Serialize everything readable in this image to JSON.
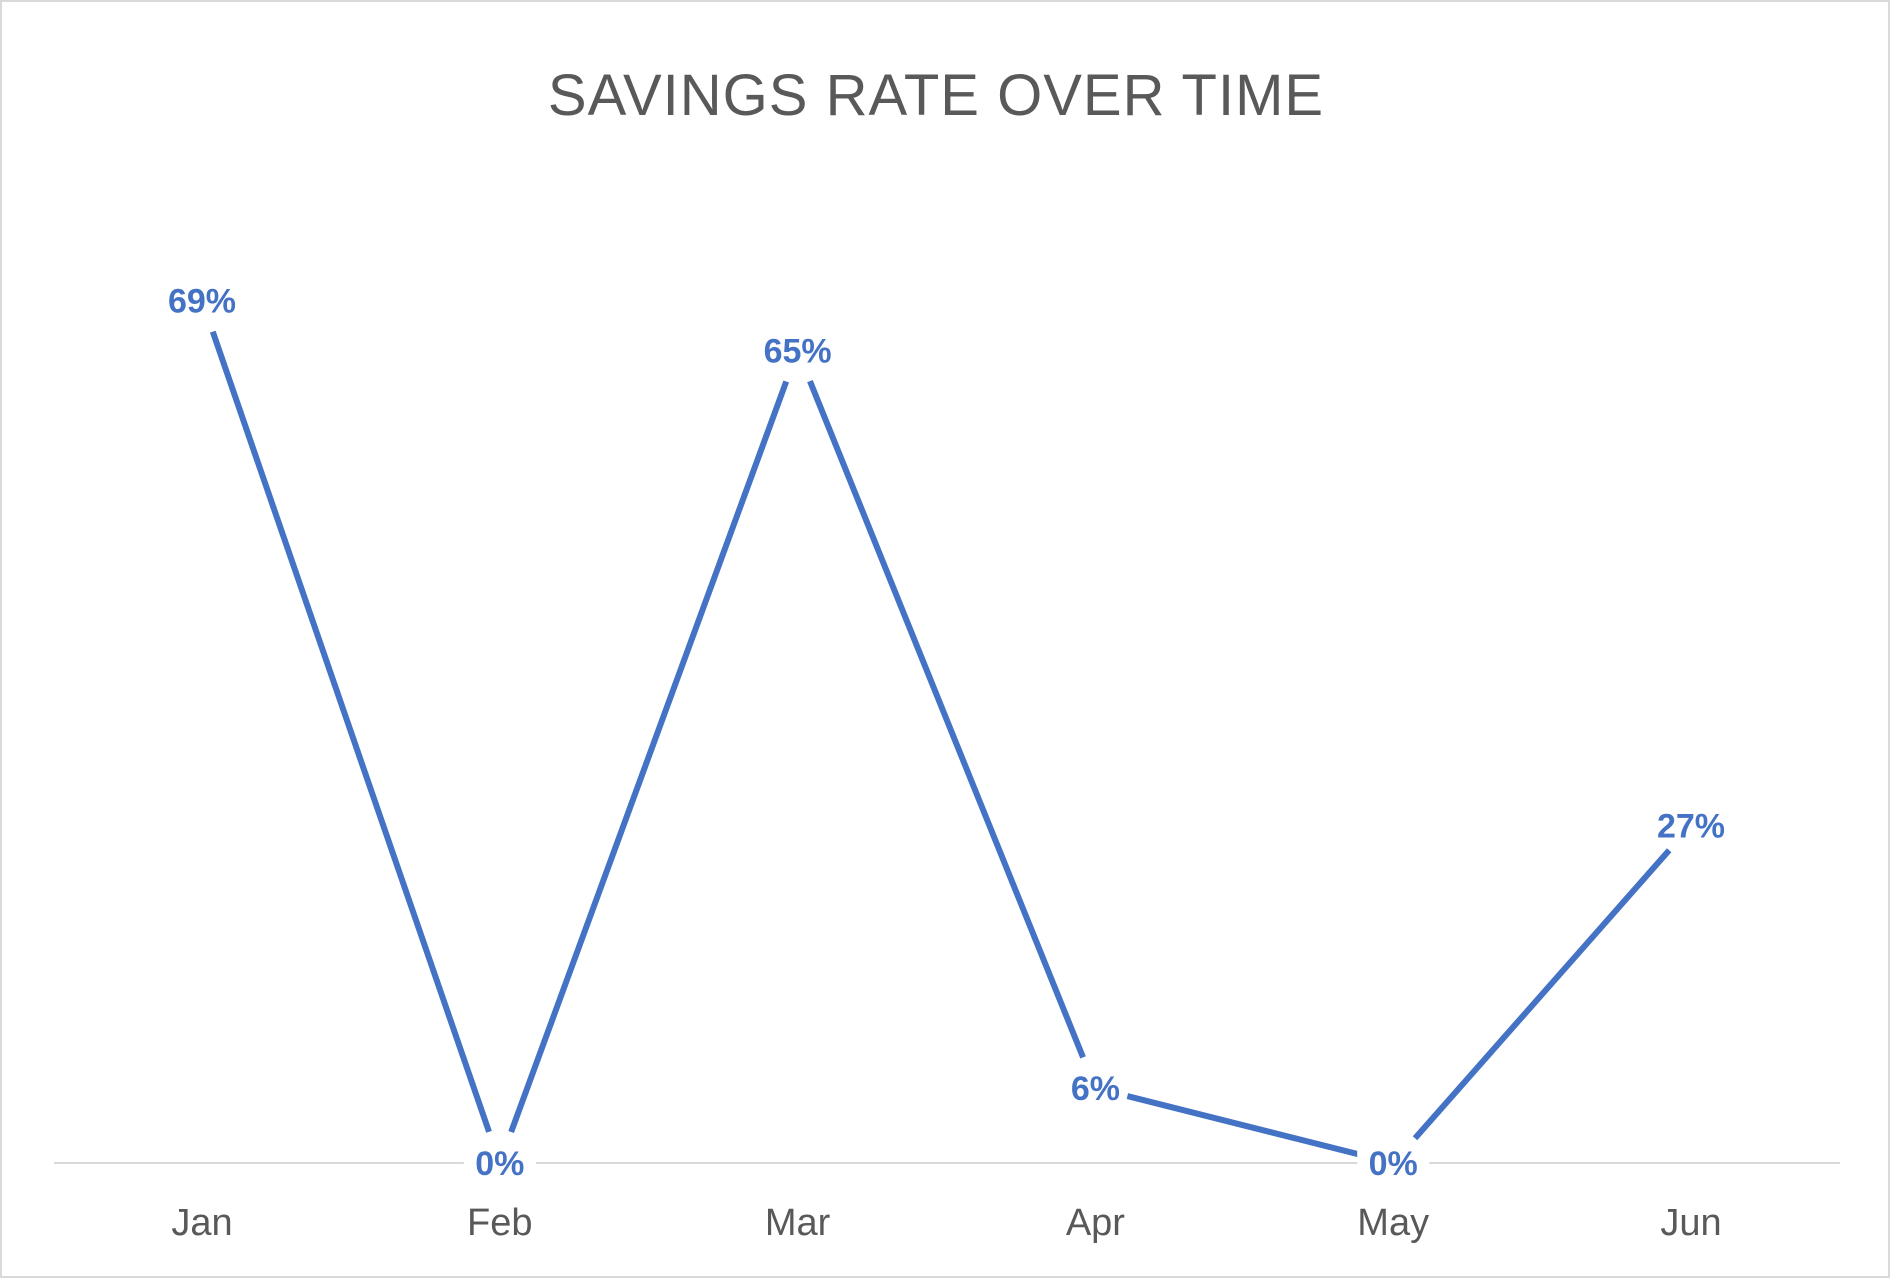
{
  "chart_data": {
    "type": "line",
    "title": "SAVINGS RATE OVER TIME",
    "categories": [
      "Jan",
      "Feb",
      "Mar",
      "Apr",
      "May",
      "Jun"
    ],
    "series": [
      {
        "values": [
          69,
          0,
          65,
          6,
          0,
          27
        ],
        "labels": [
          "69%",
          "0%",
          "65%",
          "6%",
          "0%",
          "27%"
        ],
        "color": "#4472c4"
      }
    ],
    "ylim": [
      0,
      80
    ],
    "grid": false,
    "legend": "none",
    "axis_color": "#d9d9d9",
    "text_color": "#595959"
  }
}
